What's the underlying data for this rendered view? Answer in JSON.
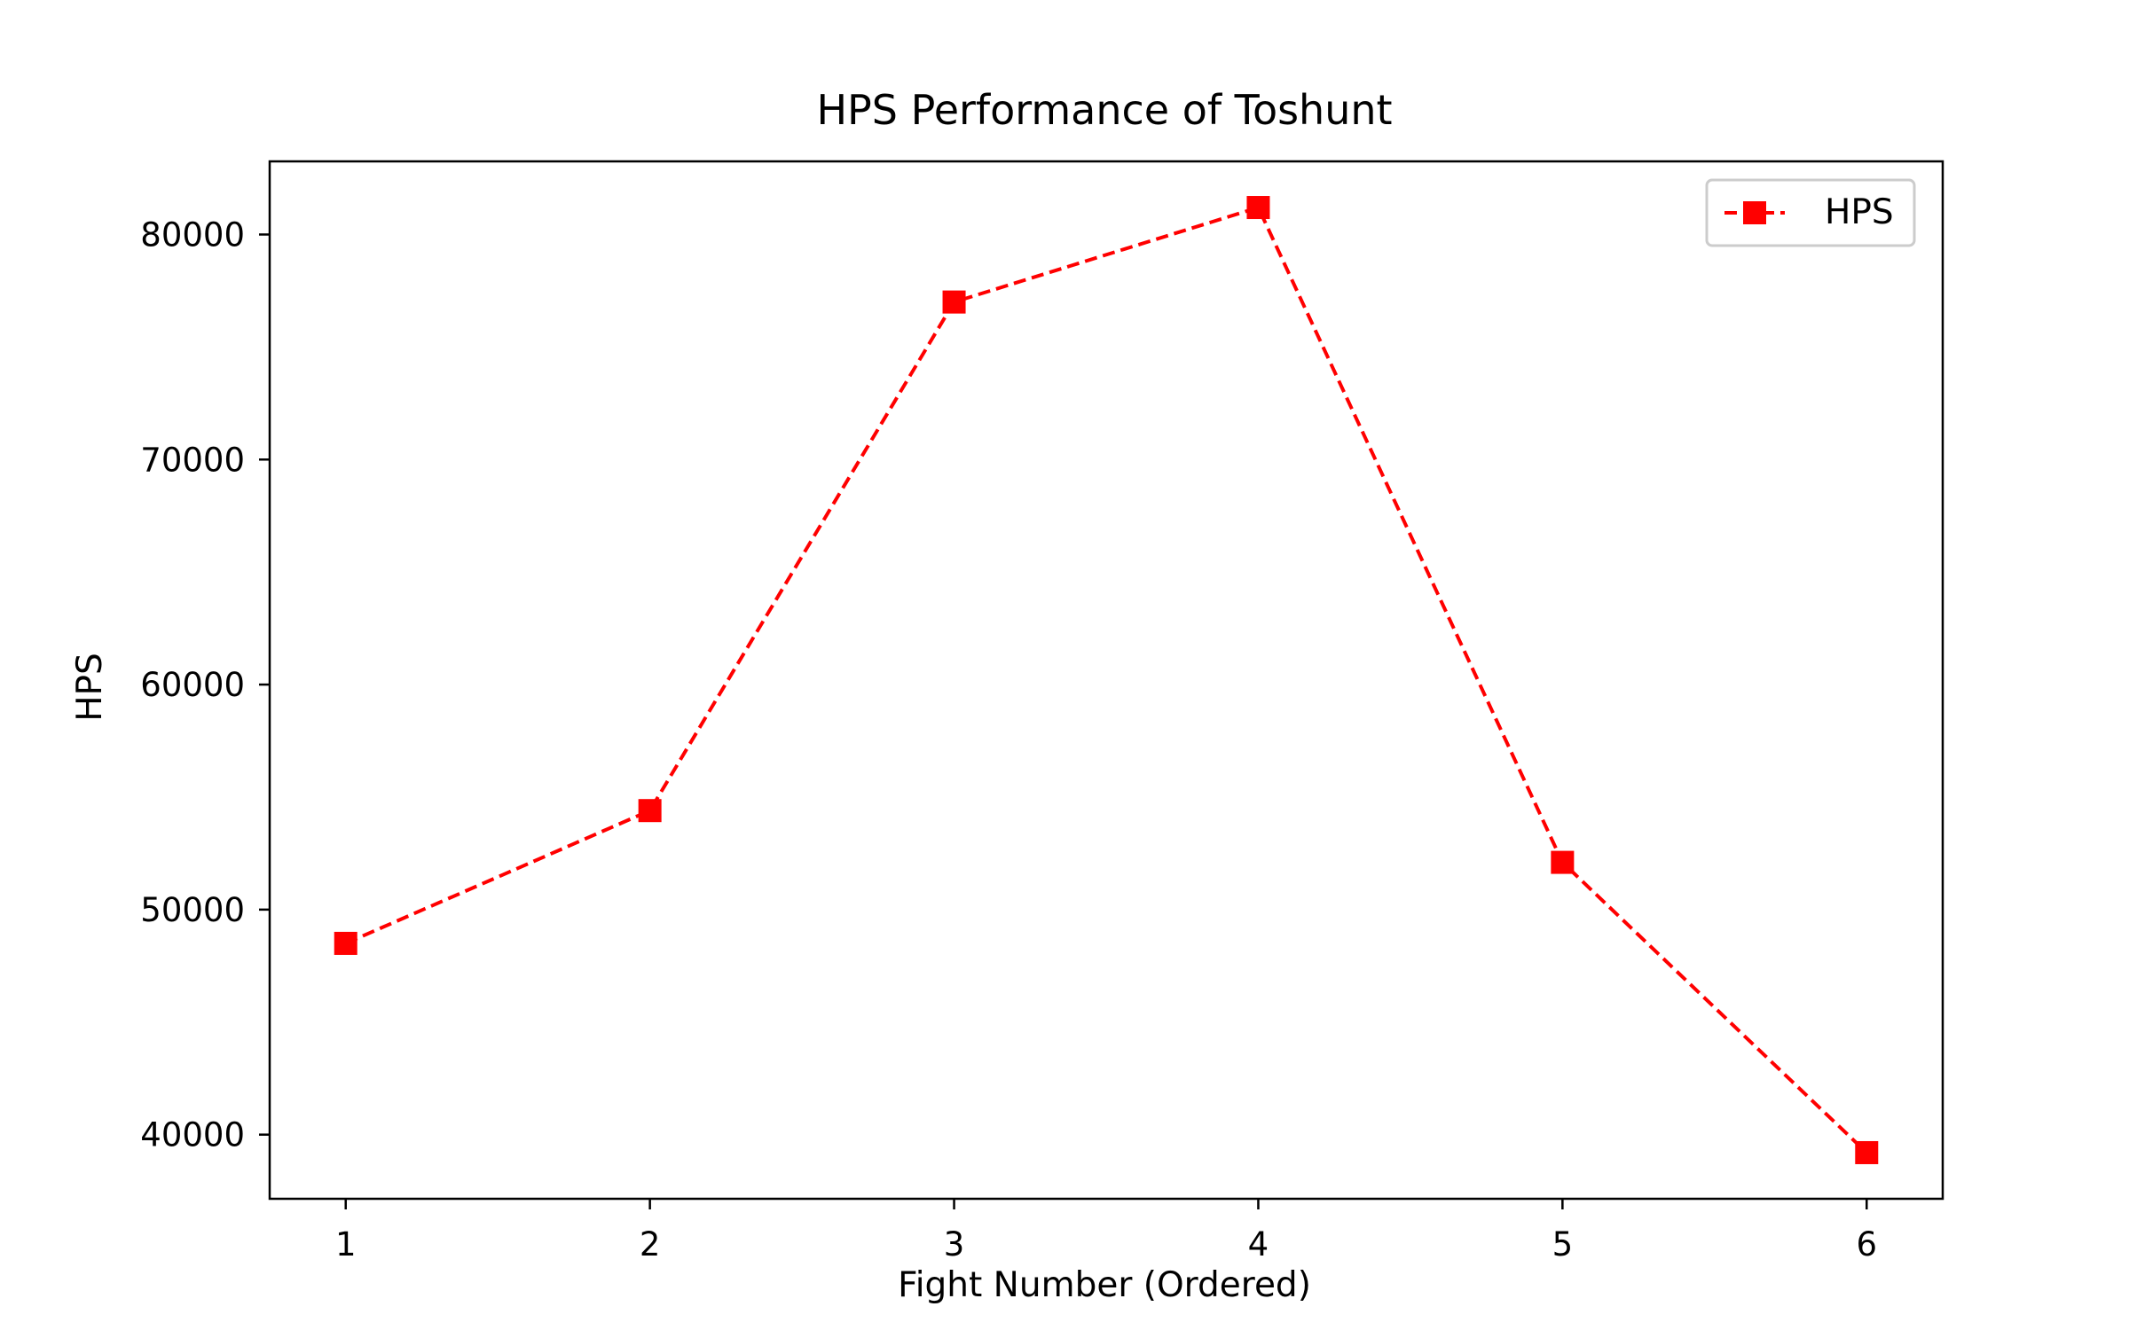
{
  "chart_data": {
    "type": "line",
    "title": "HPS Performance of Toshunt",
    "xlabel": "Fight Number (Ordered)",
    "ylabel": "HPS",
    "x": [
      1,
      2,
      3,
      4,
      5,
      6
    ],
    "x_ticks": [
      "1",
      "2",
      "3",
      "4",
      "5",
      "6"
    ],
    "xlim": [
      0.75,
      6.25
    ],
    "y_ticks": [
      40000,
      50000,
      60000,
      70000,
      80000
    ],
    "y_tick_labels": [
      "40000",
      "50000",
      "60000",
      "70000",
      "80000"
    ],
    "ylim": [
      37150,
      83250
    ],
    "series": [
      {
        "name": "HPS",
        "values": [
          48500,
          54400,
          77000,
          81200,
          52100,
          39200
        ],
        "color": "#ff0000",
        "line_style": "dashed",
        "marker": "square"
      }
    ],
    "legend": {
      "placement": "top-right"
    },
    "grid": false
  }
}
